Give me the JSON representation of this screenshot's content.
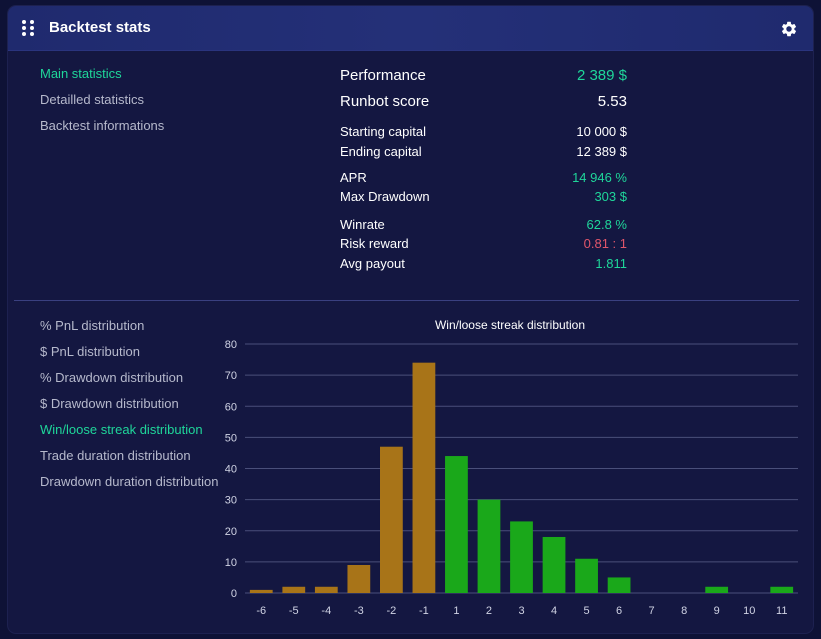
{
  "header": {
    "title": "Backtest stats",
    "drag_icon": "grip-icon",
    "settings_icon": "gear-icon"
  },
  "menu_top": [
    {
      "label": "Main statistics",
      "active": true
    },
    {
      "label": "Detailled statistics",
      "active": false
    },
    {
      "label": "Backtest informations",
      "active": false
    }
  ],
  "stats": {
    "performance": {
      "label": "Performance",
      "value": "2 389 $"
    },
    "runbot_score": {
      "label": "Runbot score",
      "value": "5.53"
    },
    "starting_capital": {
      "label": "Starting capital",
      "value": "10 000 $"
    },
    "ending_capital": {
      "label": "Ending capital",
      "value": "12 389 $"
    },
    "apr": {
      "label": "APR",
      "value": "14 946 %"
    },
    "max_drawdown": {
      "label": "Max Drawdown",
      "value": "303 $"
    },
    "winrate": {
      "label": "Winrate",
      "value": "62.8 %"
    },
    "risk_reward": {
      "label": "Risk reward",
      "value": "0.81 : 1"
    },
    "avg_payout": {
      "label": "Avg payout",
      "value": "1.811"
    }
  },
  "menu_bottom": [
    {
      "label": "% PnL distribution",
      "active": false
    },
    {
      "label": "$ PnL distribution",
      "active": false
    },
    {
      "label": "% Drawdown distribution",
      "active": false
    },
    {
      "label": "$ Drawdown distribution",
      "active": false
    },
    {
      "label": "Win/loose streak distribution",
      "active": true
    },
    {
      "label": "Trade duration distribution",
      "active": false
    },
    {
      "label": "Drawdown duration distribution",
      "active": false
    }
  ],
  "colors": {
    "accent": "#1fd69a",
    "loss_bar": "#a87418",
    "win_bar": "#1aa81a",
    "negative": "#e0566b"
  },
  "chart_data": {
    "type": "bar",
    "title": "Win/loose streak distribution",
    "categories": [
      "-6",
      "-5",
      "-4",
      "-3",
      "-2",
      "-1",
      "1",
      "2",
      "3",
      "4",
      "5",
      "6",
      "7",
      "8",
      "9",
      "10",
      "11"
    ],
    "values": [
      1,
      2,
      2,
      9,
      47,
      74,
      44,
      30,
      23,
      18,
      11,
      5,
      0,
      0,
      2,
      0,
      2
    ],
    "yticks": [
      "0",
      "10",
      "20",
      "30",
      "40",
      "50",
      "60",
      "70",
      "80"
    ],
    "ylim": [
      0,
      80
    ],
    "grid": true,
    "xlabel": "",
    "ylabel": ""
  }
}
